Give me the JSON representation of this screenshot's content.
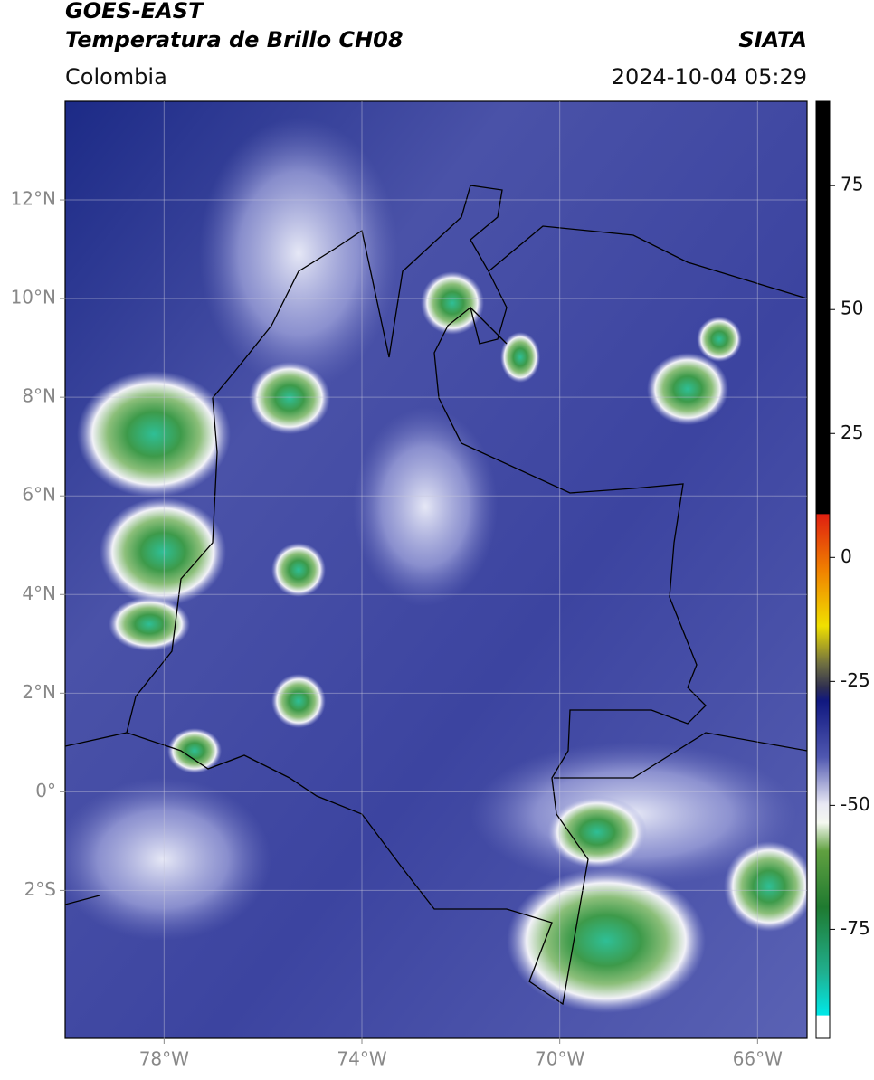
{
  "header": {
    "satellite": "GOES-EAST",
    "product": "Temperatura de Brillo CH08",
    "source": "SIATA",
    "region": "Colombia",
    "datetime": "2024-10-04 05:29"
  },
  "map": {
    "xlim": [
      -80,
      -65
    ],
    "ylim": [
      -5,
      14
    ],
    "xticks": [
      {
        "value": -78,
        "label": "78°W"
      },
      {
        "value": -74,
        "label": "74°W"
      },
      {
        "value": -70,
        "label": "70°W"
      },
      {
        "value": -66,
        "label": "66°W"
      }
    ],
    "yticks": [
      {
        "value": 12,
        "label": "12°N"
      },
      {
        "value": 10,
        "label": "10°N"
      },
      {
        "value": 8,
        "label": "8°N"
      },
      {
        "value": 6,
        "label": "6°N"
      },
      {
        "value": 4,
        "label": "4°N"
      },
      {
        "value": 2,
        "label": "2°N"
      },
      {
        "value": 0,
        "label": "0°"
      },
      {
        "value": -2,
        "label": "2°S"
      }
    ]
  },
  "colorbar": {
    "range": [
      -97,
      92
    ],
    "ticks": [
      75,
      50,
      25,
      0,
      -25,
      -50,
      -75
    ]
  }
}
